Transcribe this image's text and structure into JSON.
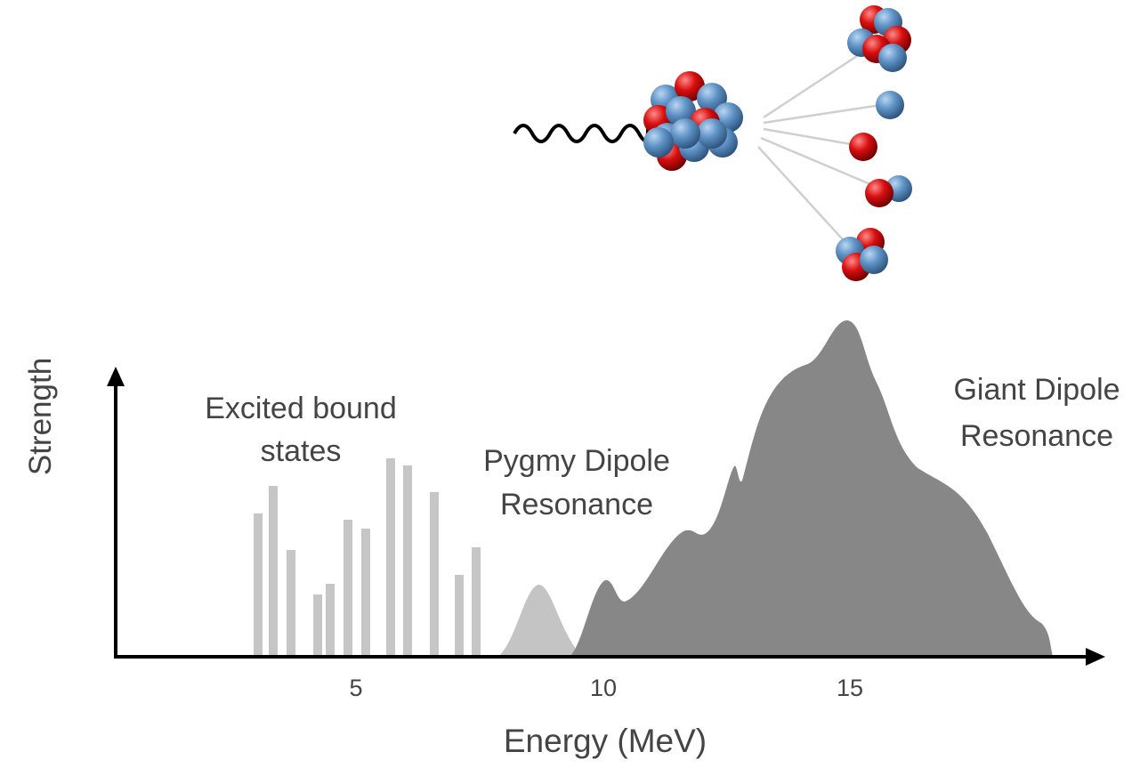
{
  "axes": {
    "y_label": "Strength",
    "x_label": "Energy (MeV)",
    "x_ticks": [
      "5",
      "10",
      "15"
    ]
  },
  "labels": [
    {
      "lines": [
        "Excited bound",
        "states"
      ]
    },
    {
      "lines": [
        "Pygmy Dipole",
        "Resonance"
      ]
    },
    {
      "lines": [
        "Giant Dipole",
        "Resonance"
      ]
    }
  ]
}
